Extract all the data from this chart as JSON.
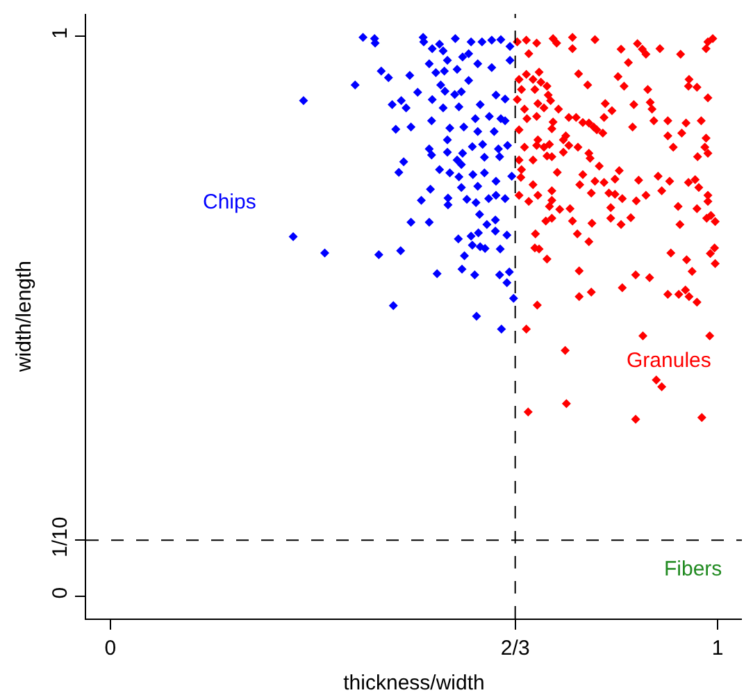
{
  "chart_data": {
    "type": "scatter",
    "xlabel": "thickness/width",
    "ylabel": "width/length",
    "xlim": [
      -0.04,
      1.04
    ],
    "ylim": [
      -0.04,
      1.04
    ],
    "xticks": [
      0,
      {
        "value": 0.6667,
        "label": "2/3"
      },
      1
    ],
    "yticks": [
      0,
      {
        "value": 0.1,
        "label": "1/10"
      },
      1
    ],
    "marker": "diamond",
    "ref_lines": [
      {
        "axis": "x",
        "value": 0.6667,
        "color": "#000000",
        "line_style": "dashed"
      },
      {
        "axis": "y",
        "value": 0.1,
        "color": "#000000",
        "line_style": "dashed"
      }
    ],
    "annotations": [
      "Chips",
      "Granules",
      "Fibers"
    ],
    "series": [
      {
        "color": "#0000ff",
        "x": [
          0.416,
          0.435,
          0.436,
          0.515,
          0.516,
          0.542,
          0.568,
          0.53,
          0.548,
          0.594,
          0.612,
          0.628,
          0.643,
          0.658,
          0.59,
          0.58,
          0.555,
          0.525,
          0.605,
          0.658,
          0.446,
          0.458,
          0.493,
          0.536,
          0.55,
          0.571,
          0.628,
          0.403,
          0.544,
          0.59,
          0.318,
          0.464,
          0.479,
          0.487,
          0.506,
          0.53,
          0.551,
          0.567,
          0.578,
          0.548,
          0.574,
          0.609,
          0.635,
          0.65,
          0.529,
          0.601,
          0.624,
          0.643,
          0.47,
          0.495,
          0.559,
          0.582,
          0.605,
          0.632,
          0.65,
          0.555,
          0.613,
          0.654,
          0.525,
          0.555,
          0.58,
          0.596,
          0.639,
          0.529,
          0.616,
          0.641,
          0.483,
          0.571,
          0.578,
          0.475,
          0.542,
          0.559,
          0.574,
          0.597,
          0.616,
          0.635,
          0.661,
          0.527,
          0.578,
          0.605,
          0.635,
          0.65,
          0.512,
          0.556,
          0.587,
          0.602,
          0.623,
          0.556,
          0.608,
          0.495,
          0.525,
          0.62,
          0.634,
          0.301,
          0.573,
          0.594,
          0.606,
          0.634,
          0.653,
          0.353,
          0.442,
          0.478,
          0.596,
          0.609,
          0.617,
          0.642,
          0.583,
          0.538,
          0.579,
          0.6,
          0.641,
          0.657,
          0.653,
          0.466,
          0.664,
          0.603,
          0.644
        ],
        "values": [
          0.998,
          0.996,
          0.988,
          0.998,
          0.99,
          0.986,
          0.996,
          0.978,
          0.974,
          0.99,
          0.99,
          0.993,
          0.994,
          0.982,
          0.969,
          0.963,
          0.957,
          0.951,
          0.951,
          0.957,
          0.938,
          0.926,
          0.93,
          0.935,
          0.938,
          0.941,
          0.944,
          0.913,
          0.913,
          0.921,
          0.885,
          0.878,
          0.885,
          0.872,
          0.9,
          0.887,
          0.902,
          0.896,
          0.901,
          0.872,
          0.874,
          0.878,
          0.895,
          0.888,
          0.849,
          0.853,
          0.857,
          0.853,
          0.834,
          0.838,
          0.836,
          0.838,
          0.83,
          0.83,
          0.849,
          0.815,
          0.807,
          0.805,
          0.799,
          0.793,
          0.791,
          0.803,
          0.799,
          0.788,
          0.784,
          0.785,
          0.776,
          0.779,
          0.771,
          0.757,
          0.762,
          0.756,
          0.749,
          0.753,
          0.756,
          0.741,
          0.75,
          0.727,
          0.73,
          0.732,
          0.716,
          0.71,
          0.707,
          0.711,
          0.709,
          0.703,
          0.71,
          0.699,
          0.682,
          0.668,
          0.668,
          0.664,
          0.672,
          0.642,
          0.638,
          0.643,
          0.649,
          0.652,
          0.645,
          0.613,
          0.61,
          0.617,
          0.627,
          0.624,
          0.621,
          0.62,
          0.608,
          0.576,
          0.584,
          0.574,
          0.574,
          0.579,
          0.56,
          0.519,
          0.532,
          0.5,
          0.477
        ]
      },
      {
        "color": "#ff0000",
        "x": [
          0.67,
          0.685,
          0.702,
          0.729,
          0.735,
          0.761,
          0.761,
          0.798,
          0.841,
          0.868,
          0.876,
          0.882,
          0.905,
          0.939,
          0.981,
          0.984,
          0.992,
          0.689,
          0.853,
          0.673,
          0.685,
          0.706,
          0.696,
          0.709,
          0.719,
          0.771,
          0.786,
          0.836,
          0.846,
          0.885,
          0.953,
          0.952,
          0.966,
          0.677,
          0.699,
          0.721,
          0.725,
          0.704,
          0.67,
          0.682,
          0.714,
          0.738,
          0.815,
          0.826,
          0.862,
          0.889,
          0.892,
          0.984,
          0.686,
          0.702,
          0.729,
          0.755,
          0.767,
          0.778,
          0.788,
          0.813,
          0.895,
          0.918,
          0.948,
          0.973,
          0.673,
          0.727,
          0.796,
          0.801,
          0.811,
          0.86,
          0.75,
          0.918,
          0.941,
          0.981,
          0.704,
          0.746,
          0.682,
          0.702,
          0.714,
          0.723,
          0.755,
          0.77,
          0.788,
          0.927,
          0.979,
          0.696,
          0.719,
          0.727,
          0.746,
          0.79,
          0.967,
          0.984,
          0.673,
          0.677,
          0.805,
          0.838,
          0.676,
          0.736,
          0.778,
          0.798,
          0.831,
          0.87,
          0.902,
          0.921,
          0.952,
          0.963,
          0.773,
          0.813,
          0.673,
          0.696,
          0.727,
          0.792,
          0.821,
          0.831,
          0.882,
          0.908,
          0.969,
          0.689,
          0.727,
          0.843,
          0.866,
          0.704,
          0.984,
          0.723,
          0.74,
          0.757,
          0.824,
          0.935,
          0.966,
          0.984,
          0.717,
          0.727,
          0.761,
          0.793,
          0.824,
          0.841,
          0.857,
          0.938,
          0.982,
          0.996,
          0.769,
          0.989,
          0.7,
          0.788,
          0.699,
          0.706,
          0.719,
          0.923,
          0.949,
          0.988,
          0.995,
          0.996,
          0.772,
          0.865,
          0.888,
          0.958,
          0.843,
          0.772,
          0.792,
          0.918,
          0.936,
          0.947,
          0.953,
          0.966,
          0.703,
          0.685,
          0.877,
          0.987,
          0.749,
          0.899,
          0.908,
          0.751,
          0.688,
          0.865,
          0.974
        ],
        "values": [
          0.99,
          0.993,
          0.988,
          0.996,
          0.988,
          0.998,
          0.978,
          0.994,
          0.977,
          0.987,
          0.977,
          0.968,
          0.978,
          0.968,
          0.978,
          0.99,
          0.996,
          0.969,
          0.953,
          0.923,
          0.932,
          0.936,
          0.923,
          0.918,
          0.911,
          0.933,
          0.913,
          0.928,
          0.911,
          0.905,
          0.923,
          0.911,
          0.909,
          0.905,
          0.905,
          0.895,
          0.885,
          0.88,
          0.887,
          0.87,
          0.872,
          0.87,
          0.88,
          0.867,
          0.878,
          0.882,
          0.87,
          0.89,
          0.853,
          0.857,
          0.847,
          0.855,
          0.855,
          0.846,
          0.845,
          0.855,
          0.849,
          0.849,
          0.845,
          0.849,
          0.833,
          0.835,
          0.838,
          0.833,
          0.827,
          0.838,
          0.822,
          0.822,
          0.827,
          0.818,
          0.815,
          0.815,
          0.802,
          0.805,
          0.802,
          0.807,
          0.805,
          0.802,
          0.791,
          0.802,
          0.802,
          0.779,
          0.786,
          0.785,
          0.793,
          0.782,
          0.785,
          0.791,
          0.779,
          0.762,
          0.768,
          0.76,
          0.748,
          0.757,
          0.753,
          0.741,
          0.745,
          0.743,
          0.75,
          0.741,
          0.739,
          0.744,
          0.735,
          0.739,
          0.716,
          0.735,
          0.724,
          0.72,
          0.72,
          0.718,
          0.716,
          0.724,
          0.73,
          0.705,
          0.707,
          0.71,
          0.706,
          0.716,
          0.716,
          0.696,
          0.691,
          0.692,
          0.694,
          0.696,
          0.692,
          0.705,
          0.67,
          0.675,
          0.67,
          0.666,
          0.675,
          0.664,
          0.676,
          0.664,
          0.675,
          0.669,
          0.647,
          0.68,
          0.647,
          0.633,
          0.622,
          0.62,
          0.602,
          0.613,
          0.601,
          0.612,
          0.622,
          0.594,
          0.581,
          0.574,
          0.569,
          0.58,
          0.551,
          0.535,
          0.543,
          0.539,
          0.539,
          0.547,
          0.535,
          0.525,
          0.52,
          0.477,
          0.465,
          0.465,
          0.439,
          0.386,
          0.374,
          0.344,
          0.329,
          0.316,
          0.319
        ]
      }
    ]
  }
}
